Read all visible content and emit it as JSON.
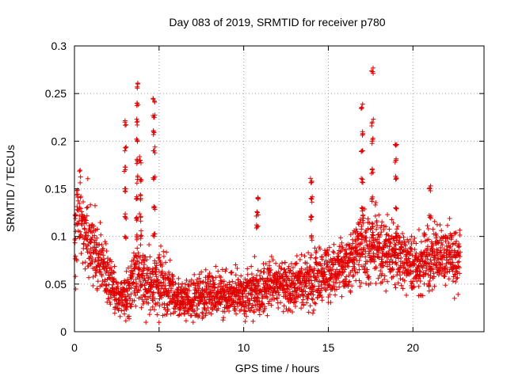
{
  "chart_data": {
    "type": "scatter",
    "title": "Day 083 of 2019, SRMTID for receiver p780",
    "xlabel": "GPS time / hours",
    "ylabel": "SRMTID / TECUs",
    "xlim": [
      0,
      24.2
    ],
    "ylim": [
      0,
      0.3
    ],
    "x_ticks": [
      0,
      5,
      10,
      15,
      20
    ],
    "x_tick_labels": [
      "0",
      "5",
      "10",
      "15",
      "20"
    ],
    "y_ticks": [
      0,
      0.05,
      0.1,
      0.15,
      0.2,
      0.25,
      0.3
    ],
    "y_tick_labels": [
      "0",
      "0.05",
      "0.1",
      "0.15",
      "0.2",
      "0.25",
      "0.3"
    ],
    "grid": true,
    "marker": "+",
    "marker_color": "#e00000",
    "series": [
      {
        "name": "SRMTID",
        "profile": [
          [
            0.0,
            0.095,
            0.03
          ],
          [
            0.3,
            0.13,
            0.035
          ],
          [
            0.6,
            0.115,
            0.03
          ],
          [
            1.0,
            0.09,
            0.03
          ],
          [
            1.5,
            0.075,
            0.025
          ],
          [
            2.0,
            0.055,
            0.02
          ],
          [
            2.5,
            0.04,
            0.015
          ],
          [
            3.0,
            0.035,
            0.015
          ],
          [
            3.5,
            0.06,
            0.025
          ],
          [
            4.0,
            0.06,
            0.03
          ],
          [
            4.5,
            0.05,
            0.02
          ],
          [
            5.0,
            0.055,
            0.025
          ],
          [
            5.5,
            0.045,
            0.02
          ],
          [
            6.0,
            0.035,
            0.015
          ],
          [
            7.0,
            0.035,
            0.015
          ],
          [
            8.0,
            0.04,
            0.018
          ],
          [
            9.0,
            0.04,
            0.018
          ],
          [
            10.0,
            0.04,
            0.018
          ],
          [
            11.0,
            0.045,
            0.018
          ],
          [
            12.0,
            0.05,
            0.018
          ],
          [
            13.0,
            0.045,
            0.018
          ],
          [
            14.0,
            0.055,
            0.02
          ],
          [
            15.0,
            0.06,
            0.02
          ],
          [
            16.0,
            0.07,
            0.022
          ],
          [
            17.0,
            0.085,
            0.025
          ],
          [
            18.0,
            0.09,
            0.025
          ],
          [
            19.0,
            0.08,
            0.022
          ],
          [
            20.0,
            0.07,
            0.02
          ],
          [
            21.0,
            0.075,
            0.022
          ],
          [
            22.0,
            0.08,
            0.022
          ],
          [
            22.8,
            0.075,
            0.022
          ]
        ],
        "spikes": [
          {
            "x": 3.0,
            "y": [
              0.1,
              0.12,
              0.15,
              0.17,
              0.19,
              0.22
            ]
          },
          {
            "x": 3.7,
            "y": [
              0.1,
              0.12,
              0.14,
              0.16,
              0.18,
              0.2,
              0.22,
              0.24,
              0.257
            ]
          },
          {
            "x": 3.9,
            "y": [
              0.1,
              0.12,
              0.14,
              0.16,
              0.18
            ]
          },
          {
            "x": 4.7,
            "y": [
              0.1,
              0.13,
              0.16,
              0.19,
              0.21,
              0.225,
              0.242
            ]
          },
          {
            "x": 10.8,
            "y": [
              0.11,
              0.125,
              0.14
            ]
          },
          {
            "x": 14.0,
            "y": [
              0.1,
              0.12,
              0.14,
              0.158
            ]
          },
          {
            "x": 17.0,
            "y": [
              0.1,
              0.13,
              0.16,
              0.19,
              0.21,
              0.235
            ]
          },
          {
            "x": 17.6,
            "y": [
              0.11,
              0.14,
              0.17,
              0.2,
              0.22,
              0.273
            ]
          },
          {
            "x": 19.0,
            "y": [
              0.1,
              0.13,
              0.16,
              0.18,
              0.196
            ]
          },
          {
            "x": 21.0,
            "y": [
              0.12,
              0.15
            ]
          }
        ],
        "x_range": [
          0.0,
          22.8
        ],
        "points_per_hour": 120
      }
    ]
  }
}
